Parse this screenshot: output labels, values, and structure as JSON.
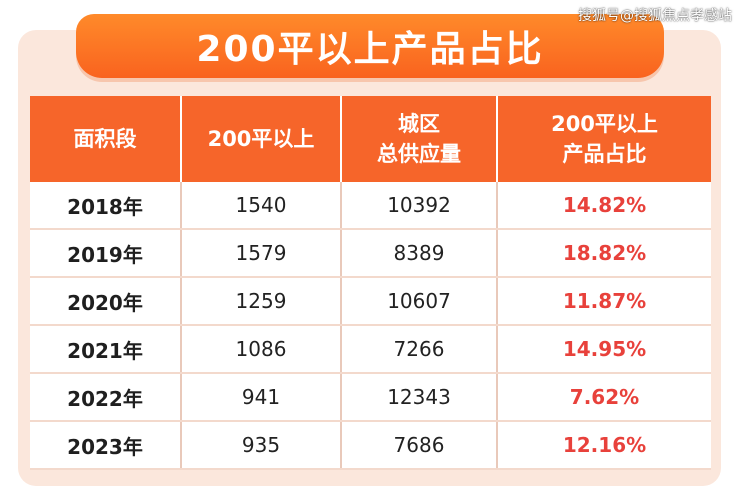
{
  "title": "200平以上产品占比",
  "watermark": "搜狐号@搜狐焦点孝感站",
  "colors": {
    "header_bg": "#f6652a",
    "title_bg": "#f9631f",
    "card_bg": "#fbe7dc",
    "pct_text": "#e8413b"
  },
  "table": {
    "headers": [
      [
        "面积段"
      ],
      [
        "200平以上"
      ],
      [
        "城区",
        "总供应量"
      ],
      [
        "200平以上",
        "产品占比"
      ]
    ],
    "rows": [
      [
        "2018年",
        "1540",
        "10392",
        "14.82%"
      ],
      [
        "2019年",
        "1579",
        "8389",
        "18.82%"
      ],
      [
        "2020年",
        "1259",
        "10607",
        "11.87%"
      ],
      [
        "2021年",
        "1086",
        "7266",
        "14.95%"
      ],
      [
        "2022年",
        "941",
        "12343",
        "7.62%"
      ],
      [
        "2023年",
        "935",
        "7686",
        "12.16%"
      ]
    ]
  }
}
